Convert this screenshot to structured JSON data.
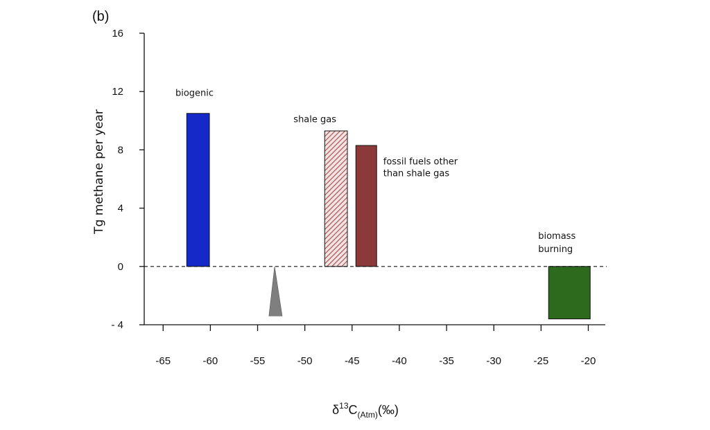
{
  "chart_data": {
    "type": "bar",
    "panel_label": "(b)",
    "ylabel": "Tg methane per year",
    "xlabel": {
      "delta": "δ",
      "superscript": "13",
      "element": "C",
      "subscript": "(Atm)",
      "unit": "(‰)"
    },
    "xlim": [
      -67,
      -18.2
    ],
    "ylim": [
      -4,
      16
    ],
    "xticks": [
      {
        "value": -65,
        "label": "-65"
      },
      {
        "value": -60,
        "label": "-60"
      },
      {
        "value": -55,
        "label": "-55"
      },
      {
        "value": -50,
        "label": "-50"
      },
      {
        "value": -45,
        "label": "-45"
      },
      {
        "value": -40,
        "label": "-40"
      },
      {
        "value": -35,
        "label": "-35"
      },
      {
        "value": -30,
        "label": "-30"
      },
      {
        "value": -25,
        "label": "-25"
      },
      {
        "value": -20,
        "label": "-20"
      }
    ],
    "yticks": [
      {
        "value": 16,
        "label": "16"
      },
      {
        "value": 12,
        "label": "12"
      },
      {
        "value": 8,
        "label": "8"
      },
      {
        "value": 4,
        "label": "4"
      },
      {
        "value": 0,
        "label": "0"
      },
      {
        "value": -4,
        "label": "- 4"
      }
    ],
    "bars": [
      {
        "x0": -62.5,
        "x1": -60.1,
        "value": 10.5,
        "color": "#1429c8",
        "pattern": "solid"
      },
      {
        "x0": -47.9,
        "x1": -45.5,
        "value": 9.3,
        "color": "#c89090",
        "pattern": "hatch"
      },
      {
        "x0": -44.6,
        "x1": -42.4,
        "value": 8.3,
        "color": "#8b3a3a",
        "pattern": "solid"
      },
      {
        "x0": -24.2,
        "x1": -19.8,
        "value": -3.6,
        "color": "#2d6a1e",
        "pattern": "solid"
      }
    ],
    "triangle": {
      "x_left": -53.8,
      "x_apex": -53.2,
      "x_right": -52.4,
      "y_apex": 0,
      "y_base": -3.4,
      "color": "#7f7f7f"
    },
    "annotations": [
      {
        "text": "biogenic",
        "x": -63.7,
        "y": 11.7
      },
      {
        "text": "shale gas",
        "x": -51.2,
        "y": 9.9
      },
      {
        "text": "fossil fuels other",
        "x": -41.7,
        "y": 7.0
      },
      {
        "text": "than shale gas",
        "x": -41.7,
        "y": 6.2
      },
      {
        "text": "biomass",
        "x": -25.3,
        "y": 1.9
      },
      {
        "text": "burning",
        "x": -25.3,
        "y": 1.0
      }
    ],
    "zero_line": {
      "value": 0,
      "style": "dashed"
    },
    "grid": false
  }
}
